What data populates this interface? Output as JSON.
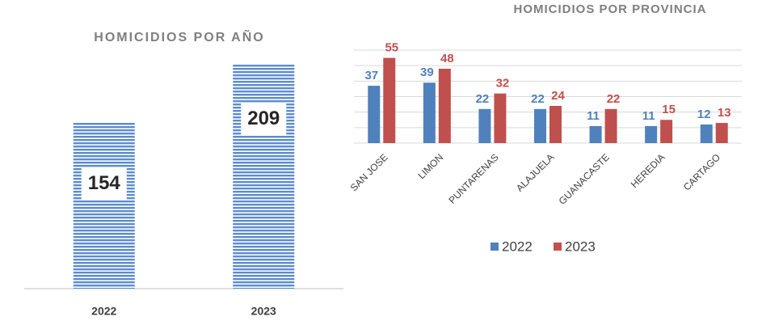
{
  "chart_data": [
    {
      "type": "bar",
      "title": "HOMICIDIOS POR AÑO",
      "categories": [
        "2022",
        "2023"
      ],
      "values": [
        154,
        209
      ],
      "color": "#5b8bd0",
      "ylim": [
        0,
        220
      ]
    },
    {
      "type": "grouped-bar",
      "title": "HOMICIDIOS POR PROVINCIA",
      "categories": [
        "SAN JOSE",
        "LIMON",
        "PUNTARENAS",
        "ALAJUELA",
        "GUANACASTE",
        "HEREDIA",
        "CARTAGO"
      ],
      "series": [
        {
          "name": "2022",
          "color": "#4f81bd",
          "values": [
            37,
            39,
            22,
            22,
            11,
            11,
            12
          ]
        },
        {
          "name": "2023",
          "color": "#c0504d",
          "values": [
            55,
            48,
            32,
            24,
            22,
            15,
            13
          ]
        }
      ],
      "ylim": [
        0,
        60
      ],
      "yticks": [
        0,
        10,
        20,
        30,
        40,
        50,
        60
      ],
      "grid": true,
      "show_tick_labels": false,
      "legend": "bottom"
    }
  ]
}
